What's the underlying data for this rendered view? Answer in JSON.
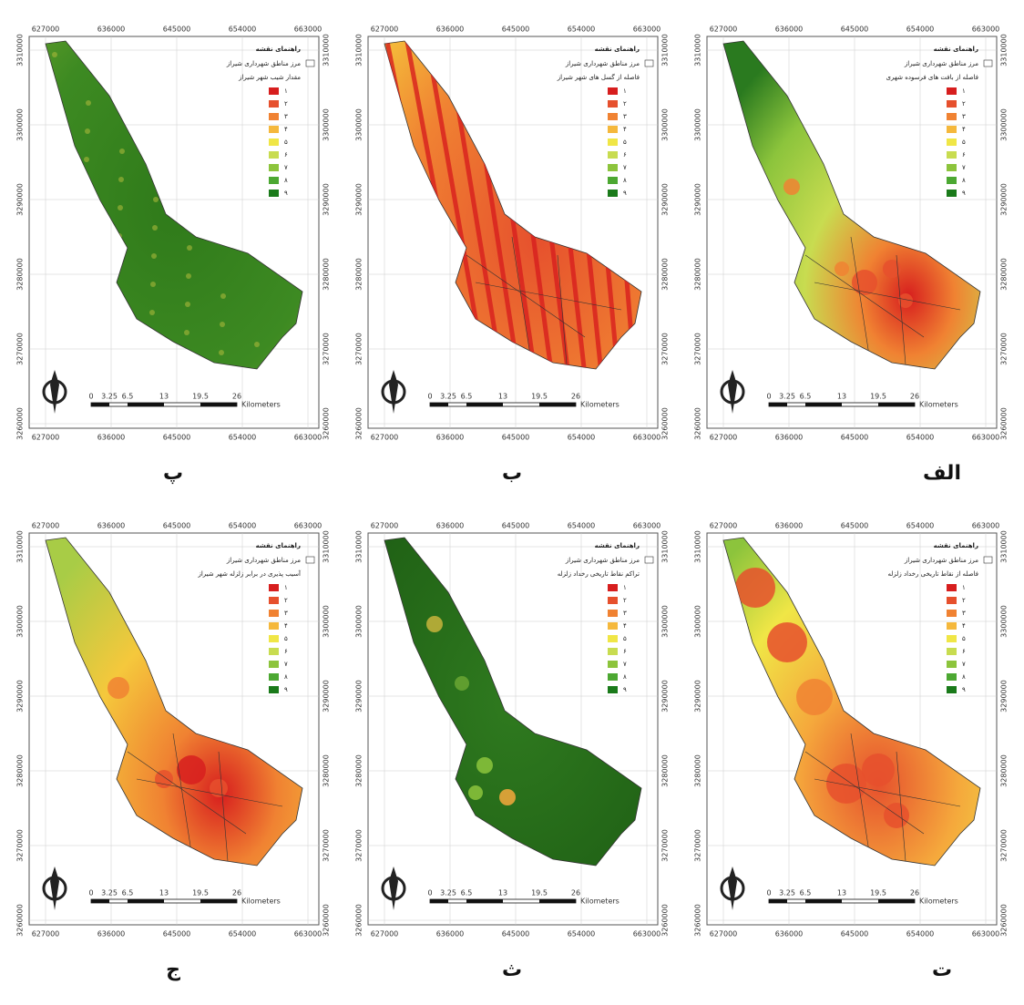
{
  "maps": [
    {
      "label": "الف",
      "layer_title": "فاصله از بافت های فرسوده شهری"
    },
    {
      "label": "ب",
      "layer_title": "فاصله از گسل های شهر شیراز"
    },
    {
      "label": "پ",
      "layer_title": "مقدار شیب شهر شیراز"
    },
    {
      "label": "ت",
      "layer_title": "فاصله از نقاط تاریخی رخداد زلزله"
    },
    {
      "label": "ث",
      "layer_title": "تراکم نقاط تاریخی رخداد زلزله"
    },
    {
      "label": "ج",
      "layer_title": "آسیب پذیری در برابر زلزله شهر شیراز"
    }
  ],
  "legend": {
    "title": "راهنمای نقشه",
    "boundary": "مرز مناطق شهرداری شیراز",
    "classes": [
      "۱",
      "۲",
      "۳",
      "۴",
      "۵",
      "۶",
      "۷",
      "۸",
      "۹"
    ]
  },
  "axes": {
    "x_ticks": [
      "627000",
      "636000",
      "645000",
      "654000",
      "663000"
    ],
    "y_ticks": [
      "3310000",
      "3300000",
      "3290000",
      "3280000",
      "3270000",
      "3260000"
    ]
  },
  "scale": {
    "labels": [
      "0",
      "3.25",
      "6.5",
      "13",
      "19.5",
      "26"
    ],
    "unit": "Kilometers"
  }
}
